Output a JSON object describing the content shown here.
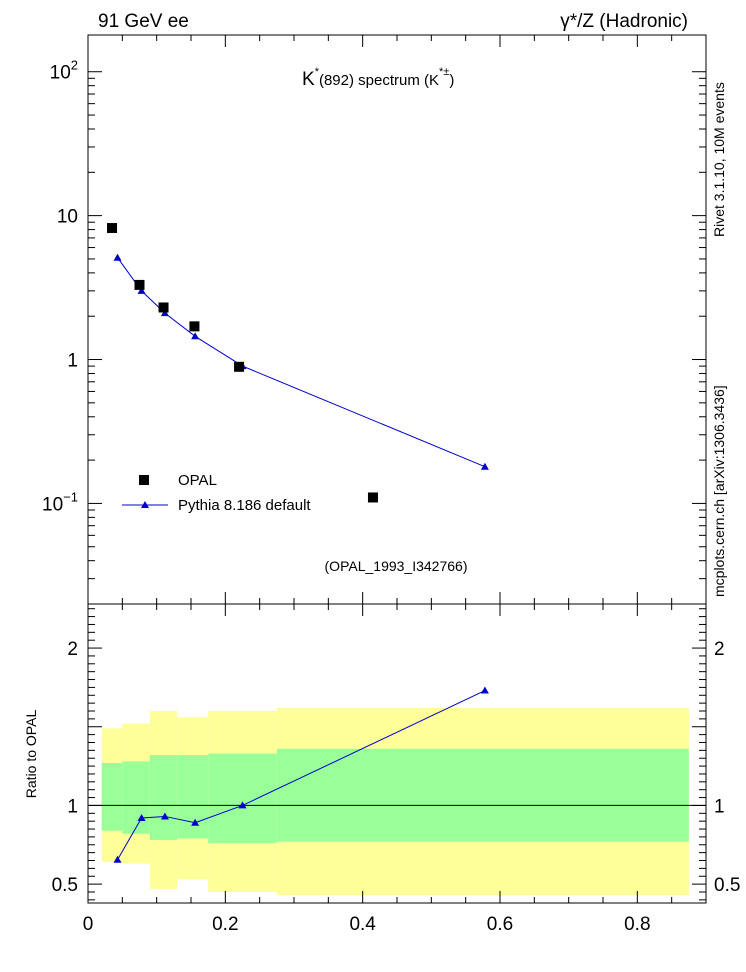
{
  "header": {
    "left_label": "91 GeV ee",
    "right_label": "γ*/Z (Hadronic)"
  },
  "side": {
    "rivet_label": "Rivet 3.1.10, 10M events",
    "source_label": "mcplots.cern.ch [arXiv:1306.3436]"
  },
  "chart_data": {
    "type": "scatter",
    "title": {
      "main": "K",
      "sup": "*",
      "mid": "(892) spectrum (K",
      "sup2": "*±",
      "tail": ")"
    },
    "watermark": "(OPAL_1993_I342766)",
    "xlim": [
      0,
      0.9
    ],
    "upper": {
      "yscale": "log",
      "ylim": [
        0.02,
        180
      ],
      "ticks": [
        {
          "value": 0.1,
          "base": "10",
          "exp": "−1"
        },
        {
          "value": 1,
          "base": "1",
          "exp": ""
        },
        {
          "value": 10,
          "base": "10",
          "exp": ""
        },
        {
          "value": 100,
          "base": "10",
          "exp": "2"
        }
      ]
    },
    "lower": {
      "ylabel": "Ratio to OPAL",
      "ylim": [
        0.38,
        2.28
      ],
      "ticks": [
        {
          "value": 0.5,
          "label": "0.5"
        },
        {
          "value": 1,
          "label": "1"
        },
        {
          "value": 2,
          "label": "2"
        }
      ]
    },
    "xticks": [
      {
        "value": 0,
        "label": "0"
      },
      {
        "value": 0.2,
        "label": "0.2"
      },
      {
        "value": 0.4,
        "label": "0.4"
      },
      {
        "value": 0.6,
        "label": "0.6"
      },
      {
        "value": 0.8,
        "label": "0.8"
      }
    ],
    "legend": {
      "position": "bottom-left",
      "entries": [
        "OPAL",
        "Pythia 8.186 default"
      ]
    },
    "series": [
      {
        "name": "OPAL",
        "marker": "square",
        "color": "#000000",
        "x": [
          0.035,
          0.075,
          0.11,
          0.155,
          0.22,
          0.415
        ],
        "y": [
          8.2,
          3.3,
          2.3,
          1.7,
          0.89,
          0.11
        ]
      },
      {
        "name": "Pythia 8.186 default",
        "marker": "triangle",
        "color": "#0000cc",
        "x": [
          0.043,
          0.078,
          0.112,
          0.156,
          0.225,
          0.578
        ],
        "y": [
          5.1,
          3.0,
          2.1,
          1.45,
          0.9,
          0.18
        ]
      }
    ],
    "ratio": {
      "x": [
        0.043,
        0.078,
        0.112,
        0.156,
        0.225,
        0.578
      ],
      "y": [
        0.655,
        0.92,
        0.93,
        0.89,
        1.0,
        1.73
      ]
    },
    "bands": [
      {
        "x0": 0.02,
        "x1": 0.05,
        "inner": [
          0.84,
          1.27
        ],
        "outer": [
          0.64,
          1.49
        ]
      },
      {
        "x0": 0.05,
        "x1": 0.09,
        "inner": [
          0.82,
          1.28
        ],
        "outer": [
          0.63,
          1.52
        ]
      },
      {
        "x0": 0.09,
        "x1": 0.13,
        "inner": [
          0.78,
          1.32
        ],
        "outer": [
          0.47,
          1.6
        ]
      },
      {
        "x0": 0.13,
        "x1": 0.175,
        "inner": [
          0.79,
          1.32
        ],
        "outer": [
          0.53,
          1.56
        ]
      },
      {
        "x0": 0.175,
        "x1": 0.275,
        "inner": [
          0.76,
          1.33
        ],
        "outer": [
          0.45,
          1.6
        ]
      },
      {
        "x0": 0.275,
        "x1": 0.875,
        "inner": [
          0.77,
          1.36
        ],
        "outer": [
          0.43,
          1.62
        ]
      }
    ],
    "colors": {
      "outer_band": "#ffff99",
      "inner_band": "#99ff99",
      "mc_line": "#0000cc",
      "data": "#000000",
      "watermark": "#888888",
      "side_text": "#555555"
    }
  }
}
